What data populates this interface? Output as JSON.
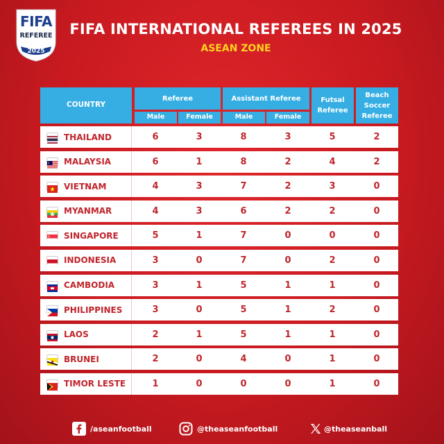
{
  "badge": {
    "brand": "FIFA",
    "label": "REFEREE",
    "year": "2025"
  },
  "header": {
    "title": "FIFA INTERNATIONAL REFEREES IN 2025",
    "subtitle": "ASEAN ZONE"
  },
  "table": {
    "col_country": "COUNTRY",
    "col_referee": "Referee",
    "col_assistant": "Assistant Referee",
    "col_futsal": "Futsal Referee",
    "col_beach": "Beach Soccer Referee",
    "sub_male": "Male",
    "sub_female": "Female",
    "rows": [
      {
        "country": "THAILAND",
        "flag": "thailand",
        "values": [
          "6",
          "3",
          "8",
          "3",
          "5",
          "2"
        ]
      },
      {
        "country": "MALAYSIA",
        "flag": "malaysia",
        "values": [
          "6",
          "1",
          "8",
          "2",
          "4",
          "2"
        ]
      },
      {
        "country": "VIETNAM",
        "flag": "vietnam",
        "values": [
          "4",
          "3",
          "7",
          "2",
          "3",
          "0"
        ]
      },
      {
        "country": "MYANMAR",
        "flag": "myanmar",
        "values": [
          "4",
          "3",
          "6",
          "2",
          "2",
          "0"
        ]
      },
      {
        "country": "SINGAPORE",
        "flag": "singapore",
        "values": [
          "5",
          "1",
          "7",
          "0",
          "0",
          "0"
        ]
      },
      {
        "country": "INDONESIA",
        "flag": "indonesia",
        "values": [
          "3",
          "0",
          "7",
          "0",
          "2",
          "0"
        ]
      },
      {
        "country": "CAMBODIA",
        "flag": "cambodia",
        "values": [
          "3",
          "1",
          "5",
          "1",
          "1",
          "0"
        ]
      },
      {
        "country": "PHILIPPINES",
        "flag": "philippines",
        "values": [
          "3",
          "0",
          "5",
          "1",
          "2",
          "0"
        ]
      },
      {
        "country": "LAOS",
        "flag": "laos",
        "values": [
          "2",
          "1",
          "5",
          "1",
          "1",
          "0"
        ]
      },
      {
        "country": "BRUNEI",
        "flag": "brunei",
        "values": [
          "2",
          "0",
          "4",
          "0",
          "1",
          "0"
        ]
      },
      {
        "country": "TIMOR LESTE",
        "flag": "timor-leste",
        "values": [
          "1",
          "0",
          "0",
          "0",
          "1",
          "0"
        ]
      }
    ]
  },
  "footer": {
    "facebook": "/aseanfootball",
    "instagram": "@theaseanfootball",
    "x": "@theaseanball"
  }
}
